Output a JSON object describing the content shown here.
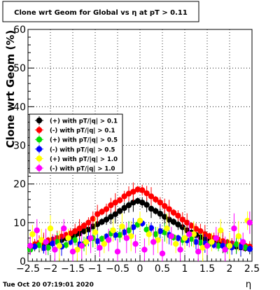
{
  "title": "Clone wrt Geom for Global vs  η at pT > 0.11",
  "timestamp": "Tue Oct 20 07:19:01 2020",
  "chart_data": {
    "type": "scatter",
    "title": "Clone wrt Geom for Global vs  η at pT > 0.11",
    "xlabel": "η",
    "ylabel": "Clone wrt Geom (%)",
    "xlim": [
      -2.5,
      2.5
    ],
    "ylim": [
      0,
      60
    ],
    "xticks": [
      -2.5,
      -2,
      -1.5,
      -1,
      -0.5,
      0,
      0.5,
      1,
      1.5,
      2,
      2.5
    ],
    "xtick_labels": [
      "−2.5",
      "−2",
      "−1.5",
      "−1",
      "−0.5",
      "0",
      "0.5",
      "1",
      "1.5",
      "2",
      "2.5"
    ],
    "yticks": [
      0,
      10,
      20,
      30,
      40,
      50,
      60
    ],
    "ytick_labels": [
      "0",
      "10",
      "20",
      "30",
      "40",
      "50",
      "60"
    ],
    "grid": true,
    "legend_position": "left",
    "series": [
      {
        "name": "(+) with pT/|q| > 0.1",
        "color": "#000000",
        "x": [
          -2.45,
          -2.35,
          -2.25,
          -2.15,
          -2.05,
          -1.95,
          -1.85,
          -1.75,
          -1.65,
          -1.55,
          -1.45,
          -1.35,
          -1.25,
          -1.15,
          -1.05,
          -0.95,
          -0.85,
          -0.75,
          -0.65,
          -0.55,
          -0.45,
          -0.35,
          -0.25,
          -0.15,
          -0.05,
          0.05,
          0.15,
          0.25,
          0.35,
          0.45,
          0.55,
          0.65,
          0.75,
          0.85,
          0.95,
          1.05,
          1.15,
          1.25,
          1.35,
          1.45,
          1.55,
          1.65,
          1.75,
          1.85,
          1.95,
          2.05,
          2.15,
          2.25,
          2.35,
          2.45
        ],
        "y": [
          3.5,
          4.0,
          4.2,
          4.5,
          4.8,
          5.0,
          5.3,
          5.5,
          6.0,
          6.2,
          6.8,
          7.2,
          7.8,
          8.2,
          9.0,
          9.6,
          10.2,
          10.8,
          11.5,
          12.2,
          13.0,
          13.8,
          14.5,
          15.2,
          15.6,
          15.2,
          14.6,
          13.6,
          13.0,
          12.3,
          11.5,
          10.8,
          10.2,
          9.5,
          8.8,
          8.0,
          7.4,
          6.8,
          6.2,
          5.8,
          5.5,
          5.0,
          4.8,
          4.5,
          4.3,
          4.0,
          3.8,
          3.6,
          3.4,
          3.2
        ]
      },
      {
        "name": "(-) with pT/|q| > 0.1",
        "color": "#ff0000",
        "x": [
          -2.45,
          -2.35,
          -2.25,
          -2.15,
          -2.05,
          -1.95,
          -1.85,
          -1.75,
          -1.65,
          -1.55,
          -1.45,
          -1.35,
          -1.25,
          -1.15,
          -1.05,
          -0.95,
          -0.85,
          -0.75,
          -0.65,
          -0.55,
          -0.45,
          -0.35,
          -0.25,
          -0.15,
          -0.05,
          0.05,
          0.15,
          0.25,
          0.35,
          0.45,
          0.55,
          0.65,
          0.75,
          0.85,
          0.95,
          1.05,
          1.15,
          1.25,
          1.35,
          1.45,
          1.55,
          1.65,
          1.75,
          1.85,
          1.95,
          2.05,
          2.15,
          2.25,
          2.35,
          2.45
        ],
        "y": [
          4.0,
          4.4,
          4.8,
          5.0,
          5.4,
          5.6,
          6.0,
          6.4,
          6.8,
          7.2,
          7.8,
          8.5,
          9.2,
          10.0,
          11.0,
          12.2,
          12.8,
          13.5,
          14.5,
          15.2,
          15.8,
          16.8,
          17.5,
          18.0,
          18.6,
          18.4,
          17.6,
          16.8,
          16.0,
          15.2,
          14.3,
          13.5,
          12.6,
          11.8,
          10.8,
          10.0,
          9.2,
          8.4,
          7.8,
          7.0,
          6.5,
          6.0,
          5.6,
          5.2,
          4.9,
          4.6,
          4.4,
          4.2,
          4.0,
          3.8
        ]
      },
      {
        "name": "(+) with pT/|q| > 0.5",
        "color": "#00dd00",
        "x": [
          -2.45,
          -2.25,
          -2.05,
          -1.85,
          -1.65,
          -1.45,
          -1.25,
          -1.05,
          -0.85,
          -0.65,
          -0.45,
          -0.25,
          -0.05,
          0.15,
          0.35,
          0.55,
          0.75,
          0.95,
          1.15,
          1.35,
          1.55,
          1.75,
          1.95,
          2.15,
          2.35
        ],
        "y": [
          3.0,
          4.2,
          3.5,
          5.0,
          4.2,
          5.5,
          4.5,
          6.0,
          5.8,
          7.2,
          6.8,
          8.0,
          9.5,
          8.2,
          7.0,
          7.5,
          6.2,
          5.5,
          5.8,
          4.8,
          4.5,
          4.0,
          3.8,
          4.4,
          3.6
        ]
      },
      {
        "name": "(-) with pT/|q| > 0.5",
        "color": "#0000ff",
        "x": [
          -2.35,
          -2.15,
          -1.95,
          -1.75,
          -1.55,
          -1.35,
          -1.15,
          -0.95,
          -0.75,
          -0.55,
          -0.35,
          -0.15,
          0.05,
          0.25,
          0.45,
          0.65,
          0.85,
          1.05,
          1.25,
          1.45,
          1.65,
          1.85,
          2.05,
          2.25,
          2.45
        ],
        "y": [
          3.8,
          3.4,
          4.6,
          3.8,
          5.0,
          4.4,
          5.8,
          5.2,
          6.4,
          6.8,
          7.5,
          8.8,
          9.8,
          8.6,
          7.8,
          6.8,
          6.0,
          5.4,
          5.0,
          4.6,
          4.2,
          4.0,
          3.6,
          3.8,
          3.2
        ]
      },
      {
        "name": "(+) with pT/|q| > 1.0",
        "color": "#ffff00",
        "x": [
          -2.4,
          -2.2,
          -2.0,
          -1.8,
          -1.6,
          -1.4,
          -1.2,
          -1.0,
          -0.8,
          -0.6,
          -0.4,
          -0.2,
          0.0,
          0.2,
          0.4,
          0.6,
          0.8,
          1.0,
          1.2,
          1.4,
          1.6,
          1.8,
          2.0,
          2.2,
          2.4
        ],
        "y": [
          7.0,
          5.5,
          8.5,
          4.0,
          6.0,
          3.0,
          5.0,
          7.5,
          4.5,
          8.0,
          9.0,
          6.5,
          10.5,
          7.0,
          5.5,
          8.5,
          4.5,
          6.0,
          7.0,
          3.5,
          5.0,
          8.0,
          4.0,
          6.5,
          10.5
        ]
      },
      {
        "name": "(-) with pT/|q| > 1.0",
        "color": "#ff00ff",
        "x": [
          -2.45,
          -2.3,
          -2.1,
          -1.9,
          -1.7,
          -1.5,
          -1.3,
          -1.1,
          -0.9,
          -0.7,
          -0.5,
          -0.3,
          -0.1,
          0.1,
          0.3,
          0.5,
          0.7,
          0.9,
          1.1,
          1.3,
          1.5,
          1.7,
          1.9,
          2.1,
          2.3,
          2.45
        ],
        "y": [
          4.0,
          8.0,
          5.0,
          3.0,
          8.5,
          2.5,
          4.0,
          6.0,
          3.5,
          5.5,
          2.5,
          6.0,
          4.5,
          3.0,
          5.0,
          2.0,
          6.5,
          3.0,
          7.0,
          2.5,
          4.0,
          6.0,
          3.0,
          8.5,
          5.0,
          10.0
        ]
      }
    ]
  }
}
